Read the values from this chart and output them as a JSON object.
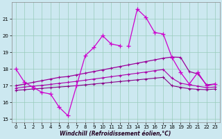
{
  "bg_color": "#cce8f0",
  "grid_color": "#99ccbb",
  "xlabel": "Windchill (Refroidissement éolien,°C)",
  "line_color_main": "#cc00cc",
  "line_color_upper": "#990099",
  "line_color_mid": "#aa00aa",
  "line_color_lower": "#880088",
  "ylim": [
    14.8,
    22.0
  ],
  "xlim": [
    -0.5,
    23.5
  ],
  "yticks": [
    15,
    16,
    17,
    18,
    19,
    20,
    21
  ],
  "xticks": [
    0,
    1,
    2,
    3,
    4,
    5,
    6,
    7,
    8,
    9,
    10,
    11,
    12,
    13,
    14,
    15,
    16,
    17,
    18,
    19,
    20,
    21,
    22,
    23
  ],
  "x_all": [
    0,
    1,
    2,
    3,
    4,
    5,
    6,
    7,
    8,
    9,
    10,
    11,
    12,
    13,
    14,
    15,
    16,
    17,
    18,
    19,
    20,
    21,
    22,
    23
  ],
  "seg1_x": [
    0,
    1,
    2,
    3,
    4,
    5,
    6,
    7,
    8,
    9,
    10,
    11,
    12
  ],
  "seg1_y": [
    18.0,
    17.2,
    16.9,
    16.6,
    16.5,
    15.7,
    15.2,
    17.0,
    18.8,
    19.3,
    20.0,
    19.5,
    19.4
  ],
  "seg2_x": [
    13,
    14,
    15,
    16,
    17,
    18,
    19,
    20,
    21,
    22,
    23
  ],
  "seg2_y": [
    19.4,
    21.6,
    21.1,
    20.2,
    20.1,
    18.7,
    17.8,
    17.1,
    17.8,
    17.0,
    17.1
  ],
  "upper_x": [
    0,
    1,
    2,
    3,
    4,
    5,
    6,
    7,
    8,
    9,
    10,
    11,
    12,
    13,
    14,
    15,
    16,
    17,
    18,
    19,
    20,
    21,
    22,
    23
  ],
  "upper_y": [
    17.0,
    17.1,
    17.2,
    17.3,
    17.4,
    17.5,
    17.55,
    17.65,
    17.75,
    17.85,
    17.95,
    18.05,
    18.15,
    18.25,
    18.35,
    18.45,
    18.55,
    18.65,
    18.72,
    18.7,
    17.85,
    17.7,
    17.05,
    17.1
  ],
  "mid_x": [
    0,
    1,
    2,
    3,
    4,
    5,
    6,
    7,
    8,
    9,
    10,
    11,
    12,
    13,
    14,
    15,
    16,
    17,
    18,
    19,
    20,
    21,
    22,
    23
  ],
  "mid_y": [
    16.85,
    16.92,
    16.97,
    17.02,
    17.08,
    17.14,
    17.2,
    17.26,
    17.33,
    17.4,
    17.47,
    17.54,
    17.61,
    17.68,
    17.75,
    17.82,
    17.9,
    17.97,
    17.45,
    17.15,
    17.05,
    16.97,
    16.88,
    16.92
  ],
  "lower_x": [
    0,
    1,
    2,
    3,
    4,
    5,
    6,
    7,
    8,
    9,
    10,
    11,
    12,
    13,
    14,
    15,
    16,
    17,
    18,
    19,
    20,
    21,
    22,
    23
  ],
  "lower_y": [
    16.72,
    16.76,
    16.8,
    16.84,
    16.88,
    16.92,
    16.96,
    17.0,
    17.05,
    17.1,
    17.15,
    17.2,
    17.25,
    17.3,
    17.35,
    17.4,
    17.45,
    17.5,
    17.0,
    16.9,
    16.82,
    16.78,
    16.76,
    16.8
  ]
}
